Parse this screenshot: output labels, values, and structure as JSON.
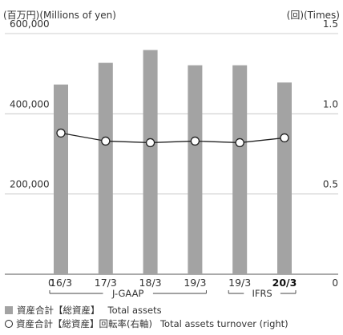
{
  "chart_data": {
    "type": "bar",
    "left_unit": "(百万円)(Millions of yen)",
    "right_unit": "(回)(Times)",
    "categories": [
      "16/3",
      "17/3",
      "18/3",
      "19/3",
      "19/3",
      "20/3"
    ],
    "bold_category_index": 5,
    "y_left": {
      "range": [
        0,
        600000
      ],
      "ticks": [
        "600,000",
        "400,000",
        "200,000",
        "0"
      ],
      "tick_values": [
        600000,
        400000,
        200000,
        0
      ]
    },
    "y_right": {
      "range": [
        0,
        1.5
      ],
      "ticks": [
        "1.5",
        "1.0",
        "0.5",
        "0"
      ],
      "tick_values": [
        1.5,
        1.0,
        0.5,
        0
      ]
    },
    "series": [
      {
        "name": "資産合計【総資産】 Total assets",
        "type": "bar",
        "axis": "left",
        "color": "#a3a3a3",
        "values": [
          473000,
          527000,
          559000,
          521000,
          521000,
          478000
        ]
      },
      {
        "name": "資産合計【総資産】回転率(右軸) Total assets turnover (right)",
        "type": "line",
        "axis": "right",
        "color": "#222222",
        "values": [
          0.88,
          0.83,
          0.82,
          0.83,
          0.82,
          0.85
        ]
      }
    ],
    "groups": [
      {
        "label": "J-GAAP",
        "start": 0,
        "end": 3
      },
      {
        "label": "IFRS",
        "start": 4,
        "end": 5
      }
    ],
    "grid": true
  },
  "legend": {
    "bar_jp": "資産合計【総資産】",
    "bar_en": "Total assets",
    "line_jp": "資産合計【総資産】回転率(右軸)",
    "line_en": "Total assets turnover (right)"
  }
}
